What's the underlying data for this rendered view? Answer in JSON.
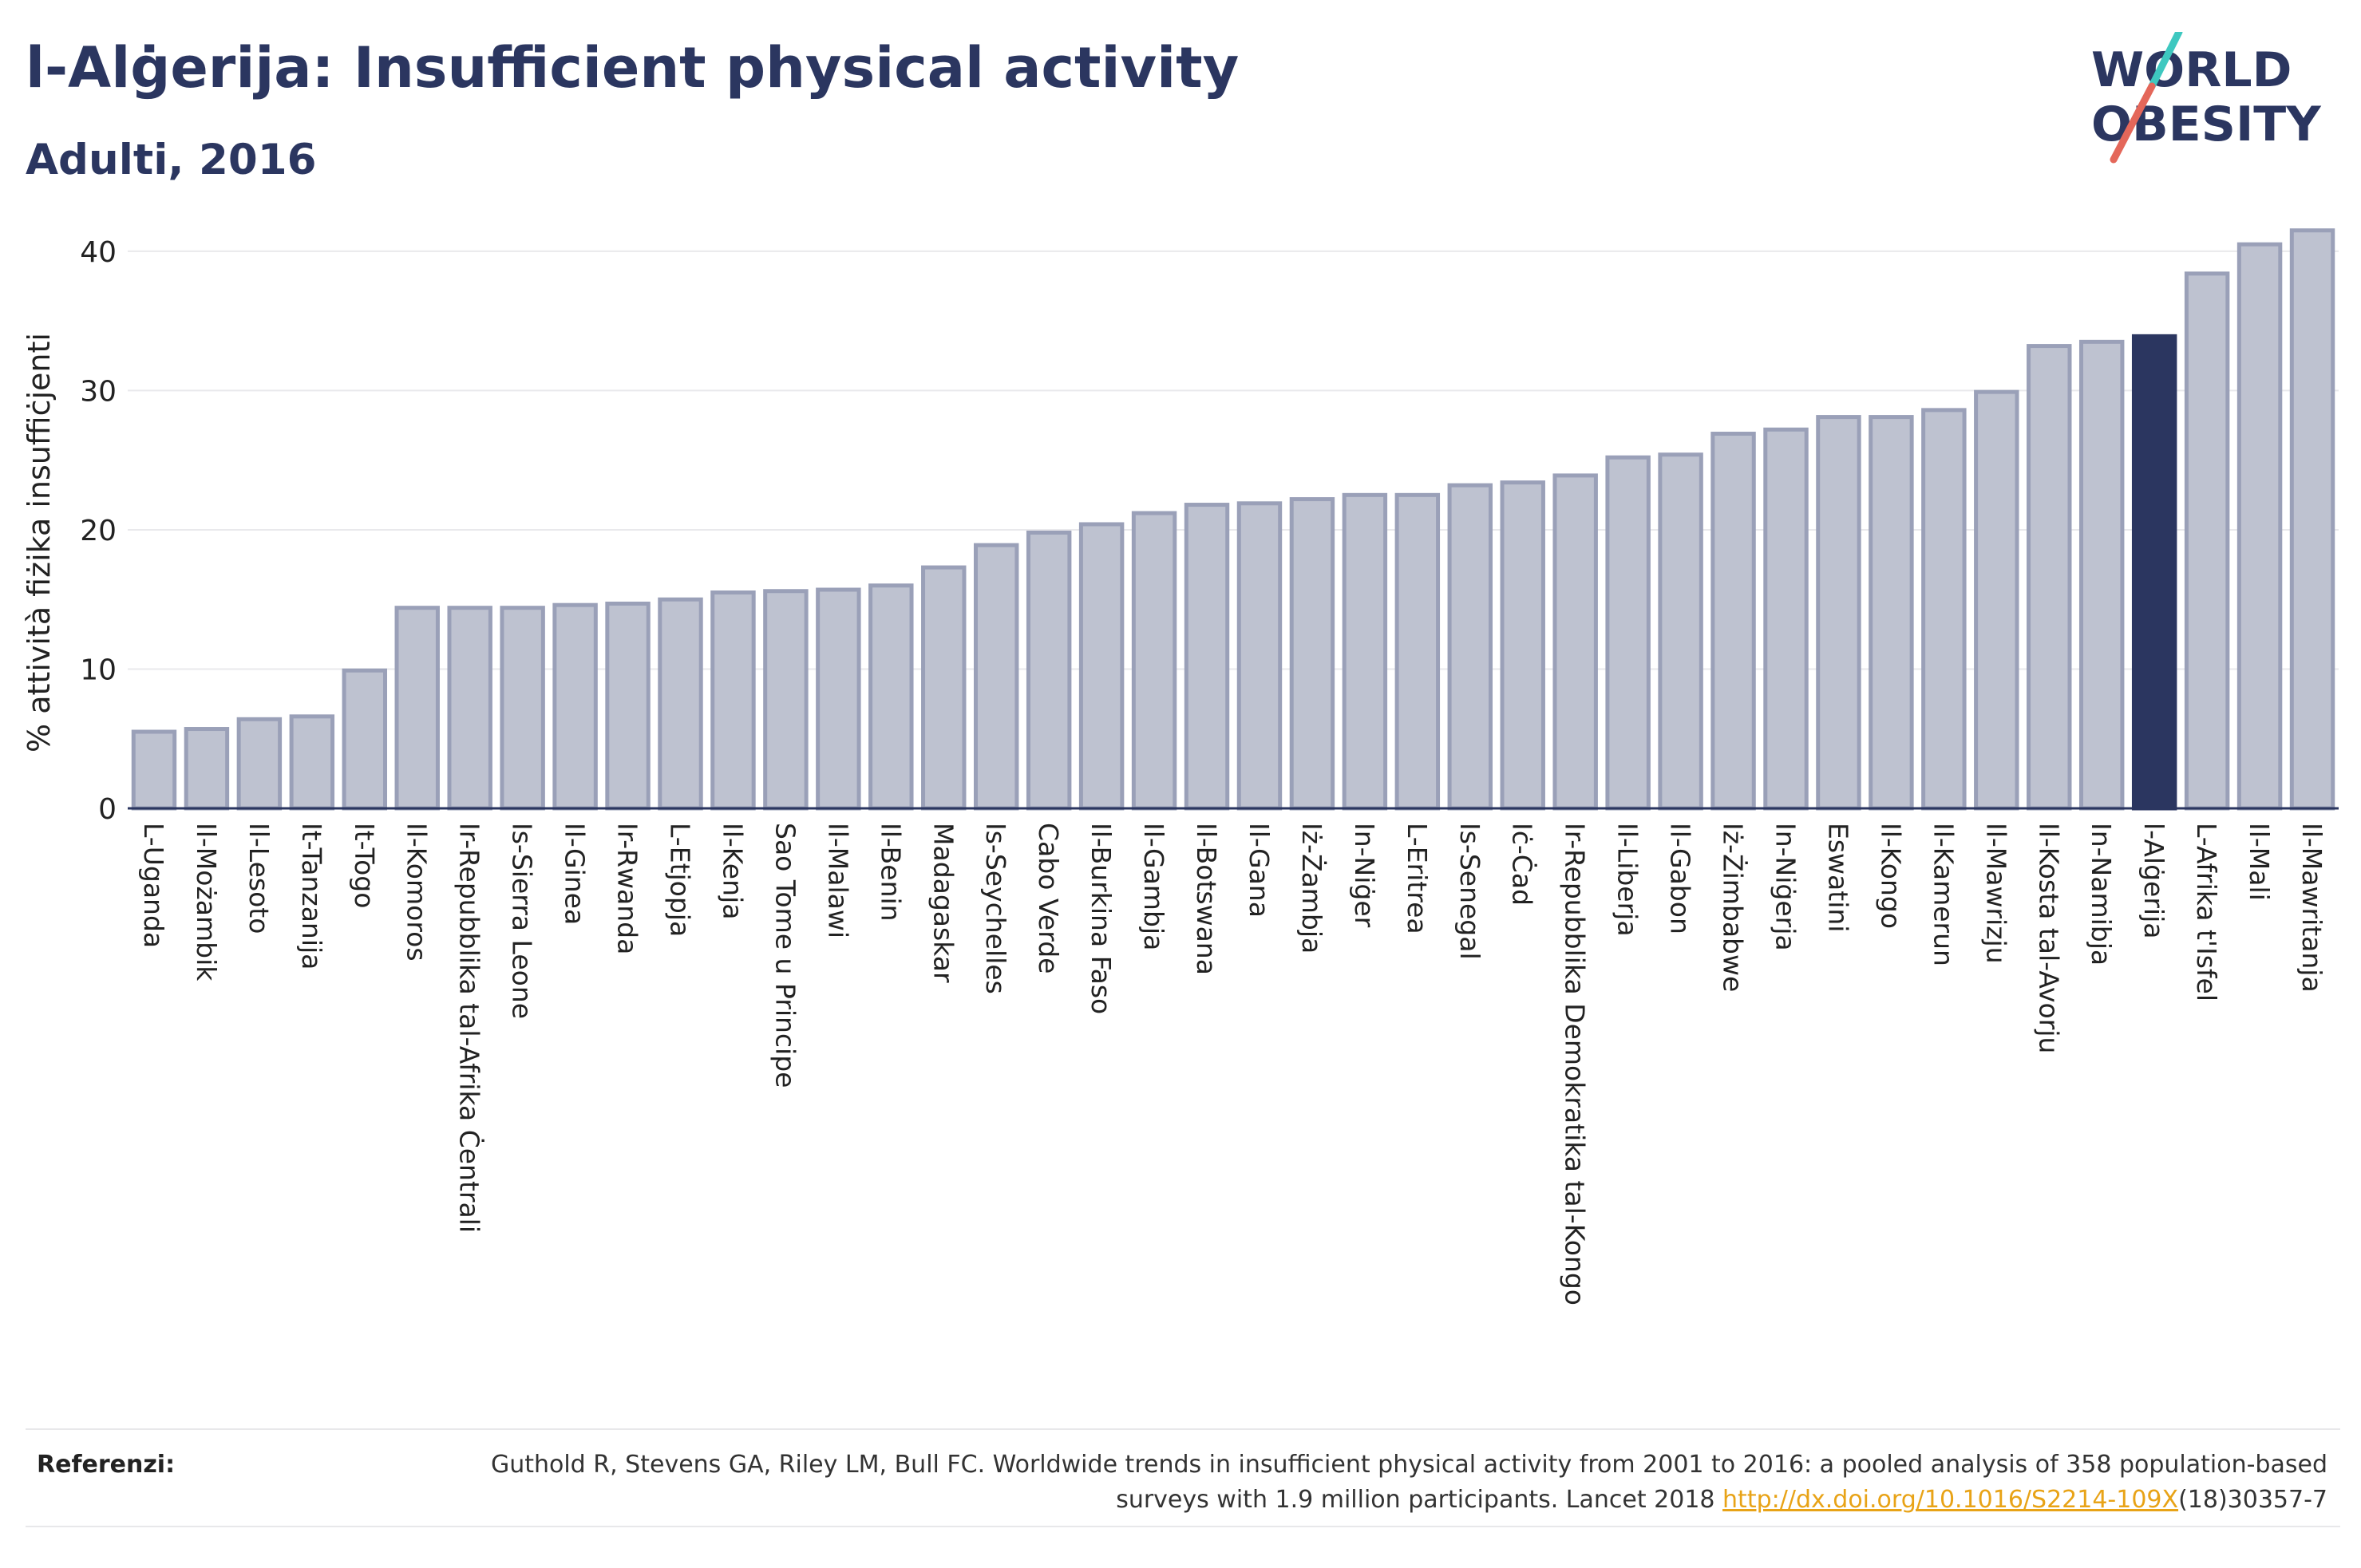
{
  "header": {
    "title": "l-Alġerija: Insufficient physical activity",
    "subtitle": "Adulti, 2016"
  },
  "logo": {
    "line1": "WORLD",
    "line2": "OBESITY"
  },
  "colors": {
    "bar": "#bec2d0",
    "bar_border": "#9aa0b8",
    "highlight": "#2b3660",
    "grid": "#e9e9ec",
    "axis": "#2b3660",
    "text": "#2b3660",
    "link": "#e8a317",
    "logo_slash_teal": "#3ec8c0",
    "logo_slash_coral": "#e4675a"
  },
  "chart_data": {
    "type": "bar",
    "title": "l-Alġerija: Insufficient physical activity",
    "subtitle": "Adulti, 2016",
    "xlabel": "",
    "ylabel": "% attività fiżika insuffiċjenti",
    "ylim": [
      0,
      42
    ],
    "yticks": [
      0,
      10,
      20,
      30,
      40
    ],
    "grid": true,
    "highlight_category": "l-Alġerija",
    "categories": [
      "L-Uganda",
      "Il-Możambik",
      "Il-Lesoto",
      "It-Tanzanija",
      "It-Togo",
      "Il-Komoros",
      "Ir-Repubblika tal-Afrika Ċentrali",
      "Is-Sierra Leone",
      "Il-Ginea",
      "Ir-Rwanda",
      "L-Etjopja",
      "Il-Kenja",
      "Sao Tome u Principe",
      "Il-Malawi",
      "Il-Benin",
      "Madagaskar",
      "Is-Seychelles",
      "Cabo Verde",
      "Il-Burkina Faso",
      "Il-Gambja",
      "Il-Botswana",
      "Il-Gana",
      "Iż-Żambja",
      "In-Niġer",
      "L-Eritrea",
      "Is-Senegal",
      "Iċ-Ċad",
      "Ir-Repubblika Demokratika tal-Kongo",
      "Il-Liberja",
      "Il-Gabon",
      "Iż-Żimbabwe",
      "In-Niġerja",
      "Eswatini",
      "Il-Kongo",
      "Il-Kamerun",
      "Il-Mawrizju",
      "Il-Kosta tal-Avorju",
      "In-Namibja",
      "l-Alġerija",
      "L-Afrika t'Isfel",
      "Il-Mali",
      "Il-Mawritanja"
    ],
    "values": [
      5.5,
      5.7,
      6.4,
      6.6,
      9.9,
      14.4,
      14.4,
      14.4,
      14.6,
      14.7,
      15.0,
      15.5,
      15.6,
      15.7,
      16.0,
      17.3,
      18.9,
      19.8,
      20.4,
      21.2,
      21.8,
      21.9,
      22.2,
      22.5,
      22.5,
      23.2,
      23.4,
      23.9,
      25.2,
      25.4,
      26.9,
      27.2,
      28.1,
      28.1,
      28.6,
      29.9,
      33.2,
      33.5,
      33.9,
      38.4,
      40.5,
      41.5
    ]
  },
  "references": {
    "label": "Referenzi:",
    "text_before_link": "Guthold R, Stevens GA, Riley LM, Bull FC. Worldwide trends in insufficient physical activity from 2001 to 2016: a pooled analysis of 358 population-based surveys with 1.9 million participants. Lancet 2018 ",
    "link_text": "http://dx.doi.org/10.1016/S2214-109X",
    "text_after_link": "(18)30357-7"
  }
}
